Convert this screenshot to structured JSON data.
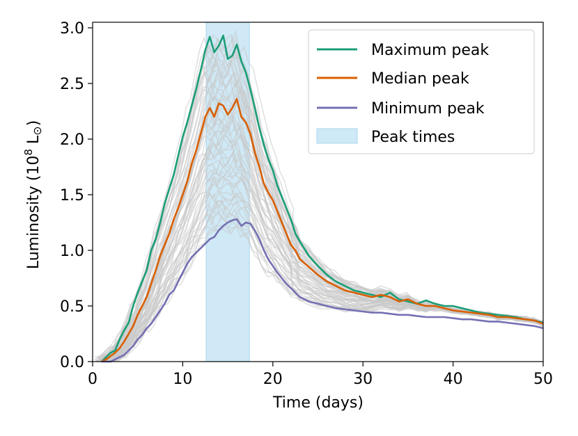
{
  "chart_data": {
    "type": "line",
    "xlabel": "Time (days)",
    "ylabel": {
      "prefix": "Luminosity (10",
      "sup": "8",
      "suffix": " L",
      "sub": "⊙",
      "close": ")"
    },
    "xlim": [
      0,
      50
    ],
    "ylim": [
      0,
      3.05
    ],
    "xticks": [
      0,
      10,
      20,
      30,
      40,
      50
    ],
    "xtick_labels": [
      "0",
      "10",
      "20",
      "30",
      "40",
      "50"
    ],
    "yticks": [
      0.0,
      0.5,
      1.0,
      1.5,
      2.0,
      2.5,
      3.0
    ],
    "ytick_labels": [
      "0.0",
      "0.5",
      "1.0",
      "1.5",
      "2.0",
      "2.5",
      "3.0"
    ],
    "legend_position": "top-right",
    "peak_times_band": {
      "name": "Peak times",
      "x_start": 12.6,
      "x_end": 17.4,
      "color": "#cfe9f6"
    },
    "ensemble_color": "#c8c8c8",
    "ensemble_count": 60,
    "series": [
      {
        "name": "Maximum peak",
        "color": "#1b9e77",
        "x": [
          1,
          1.5,
          2,
          2.5,
          3,
          3.5,
          4,
          4.5,
          5,
          5.5,
          6,
          6.5,
          7,
          7.5,
          8,
          8.5,
          9,
          9.5,
          10,
          10.5,
          11,
          11.5,
          12,
          12.5,
          13,
          13.5,
          14,
          14.5,
          15,
          15.5,
          16,
          16.5,
          17,
          17.5,
          18,
          18.5,
          19,
          19.5,
          20,
          20.5,
          21,
          21.5,
          22,
          22.5,
          23,
          24,
          25,
          26,
          27,
          28,
          29,
          30,
          31,
          32,
          33,
          34,
          35,
          36,
          37,
          38,
          39,
          40,
          41,
          42,
          43,
          44,
          45,
          46,
          47,
          48,
          49,
          50
        ],
        "y": [
          0.0,
          0.04,
          0.08,
          0.1,
          0.2,
          0.28,
          0.35,
          0.5,
          0.62,
          0.72,
          0.82,
          1.0,
          1.1,
          1.25,
          1.42,
          1.55,
          1.68,
          1.85,
          2.02,
          2.15,
          2.3,
          2.45,
          2.62,
          2.8,
          2.92,
          2.78,
          2.84,
          2.93,
          2.72,
          2.75,
          2.85,
          2.7,
          2.6,
          2.45,
          2.28,
          2.1,
          1.95,
          1.82,
          1.72,
          1.58,
          1.48,
          1.38,
          1.28,
          1.15,
          1.08,
          0.95,
          0.86,
          0.78,
          0.72,
          0.68,
          0.64,
          0.62,
          0.6,
          0.58,
          0.62,
          0.56,
          0.54,
          0.52,
          0.55,
          0.52,
          0.5,
          0.5,
          0.48,
          0.46,
          0.44,
          0.43,
          0.42,
          0.41,
          0.4,
          0.38,
          0.37,
          0.35
        ]
      },
      {
        "name": "Median peak",
        "color": "#d95f02",
        "x": [
          1,
          1.5,
          2,
          2.5,
          3,
          3.5,
          4,
          4.5,
          5,
          5.5,
          6,
          6.5,
          7,
          7.5,
          8,
          8.5,
          9,
          9.5,
          10,
          10.5,
          11,
          11.5,
          12,
          12.5,
          13,
          13.5,
          14,
          14.5,
          15,
          15.5,
          16,
          16.5,
          17,
          17.5,
          18,
          18.5,
          19,
          19.5,
          20,
          20.5,
          21,
          21.5,
          22,
          22.5,
          23,
          24,
          25,
          26,
          27,
          28,
          29,
          30,
          31,
          32,
          33,
          34,
          35,
          36,
          37,
          38,
          39,
          40,
          41,
          42,
          43,
          44,
          45,
          46,
          47,
          48,
          49,
          50
        ],
        "y": [
          0.0,
          0.02,
          0.05,
          0.08,
          0.12,
          0.18,
          0.25,
          0.32,
          0.42,
          0.5,
          0.58,
          0.7,
          0.82,
          0.95,
          1.05,
          1.15,
          1.28,
          1.38,
          1.5,
          1.62,
          1.78,
          1.9,
          2.05,
          2.2,
          2.28,
          2.2,
          2.32,
          2.3,
          2.22,
          2.28,
          2.36,
          2.2,
          2.15,
          2.05,
          1.88,
          1.75,
          1.6,
          1.52,
          1.45,
          1.35,
          1.25,
          1.15,
          1.05,
          1.0,
          0.92,
          0.85,
          0.78,
          0.72,
          0.68,
          0.64,
          0.62,
          0.6,
          0.58,
          0.6,
          0.58,
          0.54,
          0.56,
          0.52,
          0.5,
          0.5,
          0.48,
          0.46,
          0.45,
          0.44,
          0.43,
          0.42,
          0.4,
          0.4,
          0.39,
          0.38,
          0.37,
          0.34
        ]
      },
      {
        "name": "Minimum peak",
        "color": "#7570b3",
        "x": [
          1,
          1.5,
          2,
          2.5,
          3,
          3.5,
          4,
          4.5,
          5,
          5.5,
          6,
          6.5,
          7,
          7.5,
          8,
          8.5,
          9,
          9.5,
          10,
          10.5,
          11,
          11.5,
          12,
          12.5,
          13,
          13.5,
          14,
          14.5,
          15,
          15.5,
          16,
          16.5,
          17,
          17.5,
          18,
          18.5,
          19,
          19.5,
          20,
          20.5,
          21,
          21.5,
          22,
          22.5,
          23,
          24,
          25,
          26,
          27,
          28,
          29,
          30,
          31,
          32,
          33,
          34,
          35,
          36,
          37,
          38,
          39,
          40,
          41,
          42,
          43,
          44,
          45,
          46,
          47,
          48,
          49,
          50
        ],
        "y": [
          0.0,
          0.0,
          0.0,
          0.02,
          0.04,
          0.06,
          0.1,
          0.14,
          0.2,
          0.24,
          0.3,
          0.34,
          0.4,
          0.46,
          0.52,
          0.6,
          0.64,
          0.72,
          0.8,
          0.88,
          0.94,
          0.98,
          1.02,
          1.06,
          1.1,
          1.12,
          1.18,
          1.22,
          1.25,
          1.27,
          1.28,
          1.22,
          1.25,
          1.24,
          1.18,
          1.1,
          1.0,
          0.92,
          0.86,
          0.8,
          0.75,
          0.7,
          0.66,
          0.62,
          0.58,
          0.54,
          0.52,
          0.5,
          0.48,
          0.47,
          0.46,
          0.45,
          0.44,
          0.44,
          0.43,
          0.42,
          0.42,
          0.41,
          0.4,
          0.4,
          0.4,
          0.39,
          0.38,
          0.38,
          0.37,
          0.36,
          0.36,
          0.35,
          0.34,
          0.33,
          0.32,
          0.3
        ]
      }
    ]
  }
}
